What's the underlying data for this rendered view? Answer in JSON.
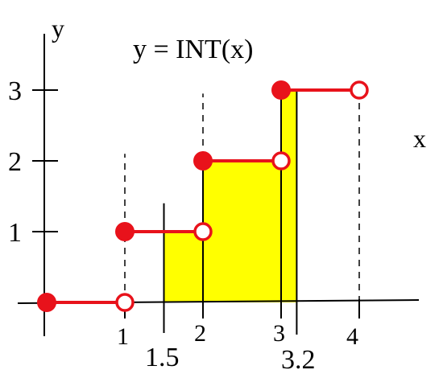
{
  "chart_data": {
    "type": "step",
    "title": "y = INT(x)",
    "xlabel": "x",
    "ylabel": "y",
    "x_ticks": [
      "1",
      "2",
      "3",
      "4"
    ],
    "y_ticks": [
      "1",
      "2",
      "3"
    ],
    "integration_bounds": {
      "lower": 1.5,
      "upper": 3.2,
      "lower_label": "1.5",
      "upper_label": "3.2"
    },
    "segments": [
      {
        "x_start": 0,
        "x_end": 1,
        "y": 0
      },
      {
        "x_start": 1,
        "x_end": 2,
        "y": 1
      },
      {
        "x_start": 2,
        "x_end": 3,
        "y": 2
      },
      {
        "x_start": 3,
        "x_end": 4,
        "y": 3
      }
    ],
    "shaded_region_color": "#ffff00",
    "step_color": "#e8121b",
    "grid": false
  }
}
